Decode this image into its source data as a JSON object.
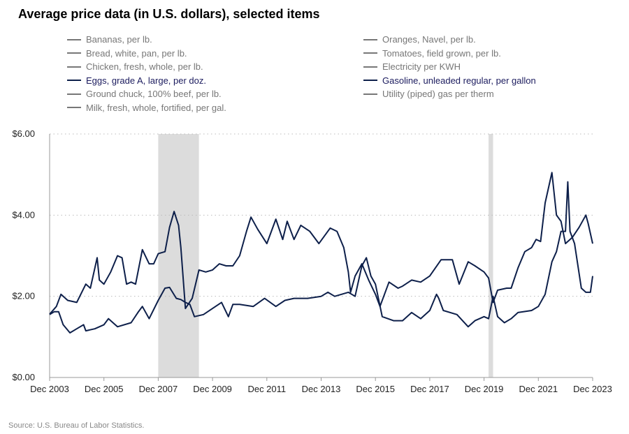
{
  "chart_data": {
    "type": "line",
    "title": "Average price data (in U.S. dollars), selected items",
    "source": "Source: U.S. Bureau of Labor Statistics.",
    "ylim": [
      0,
      6
    ],
    "yticks": [
      "$0.00",
      "$2.00",
      "$4.00",
      "$6.00"
    ],
    "ytick_values": [
      0,
      2,
      4,
      6
    ],
    "xticks": [
      "Dec 2003",
      "Dec 2005",
      "Dec 2007",
      "Dec 2009",
      "Dec 2011",
      "Dec 2013",
      "Dec 2015",
      "Dec 2017",
      "Dec 2019",
      "Dec 2021",
      "Dec 2023"
    ],
    "xlim": [
      "2003-12",
      "2023-12"
    ],
    "grid": "horizontal dotted",
    "line_color": "#0d1f4a",
    "recessions": [
      [
        "2007-12",
        "2009-06"
      ],
      [
        "2020-02",
        "2020-04"
      ]
    ],
    "recession_color": "#dcdcdc",
    "legend": [
      {
        "label": "Bananas, per lb.",
        "selected": false
      },
      {
        "label": "Bread, white, pan, per lb.",
        "selected": false
      },
      {
        "label": "Chicken, fresh, whole, per lb.",
        "selected": false
      },
      {
        "label": "Eggs, grade A, large, per doz.",
        "selected": true
      },
      {
        "label": "Ground chuck, 100% beef, per lb.",
        "selected": false
      },
      {
        "label": "Milk, fresh, whole, fortified, per gal.",
        "selected": false
      },
      {
        "label": "Oranges, Navel, per lb.",
        "selected": false
      },
      {
        "label": "Tomatoes, field grown, per lb.",
        "selected": false
      },
      {
        "label": "Electricity per KWH",
        "selected": false
      },
      {
        "label": "Gasoline, unleaded regular, per gallon",
        "selected": true
      },
      {
        "label": "Utility (piped) gas per therm",
        "selected": false
      }
    ],
    "series": [
      {
        "name": "Gasoline, unleaded regular, per gallon",
        "x": [
          "2003-12",
          "2004-03",
          "2004-05",
          "2004-08",
          "2004-12",
          "2005-04",
          "2005-06",
          "2005-09",
          "2005-10",
          "2005-12",
          "2006-03",
          "2006-06",
          "2006-08",
          "2006-10",
          "2006-12",
          "2007-02",
          "2007-05",
          "2007-08",
          "2007-10",
          "2007-12",
          "2008-03",
          "2008-05",
          "2008-07",
          "2008-09",
          "2008-10",
          "2008-12",
          "2009-03",
          "2009-06",
          "2009-09",
          "2009-12",
          "2010-03",
          "2010-06",
          "2010-09",
          "2010-12",
          "2011-03",
          "2011-05",
          "2011-08",
          "2011-12",
          "2012-04",
          "2012-07",
          "2012-09",
          "2012-12",
          "2013-03",
          "2013-07",
          "2013-11",
          "2014-04",
          "2014-07",
          "2014-10",
          "2014-12",
          "2015-01",
          "2015-03",
          "2015-06",
          "2015-09",
          "2015-12",
          "2016-02",
          "2016-06",
          "2016-10",
          "2016-12",
          "2017-04",
          "2017-08",
          "2017-12",
          "2018-05",
          "2018-10",
          "2019-01",
          "2019-05",
          "2019-08",
          "2019-12",
          "2020-02",
          "2020-04",
          "2020-06",
          "2020-10",
          "2020-12",
          "2021-03",
          "2021-06",
          "2021-09",
          "2021-11",
          "2022-01",
          "2022-03",
          "2022-06",
          "2022-08",
          "2022-10",
          "2022-12",
          "2023-03",
          "2023-06",
          "2023-09",
          "2023-10",
          "2023-12"
        ],
        "y": [
          1.56,
          1.75,
          2.05,
          1.9,
          1.85,
          2.3,
          2.2,
          2.95,
          2.4,
          2.3,
          2.6,
          3.0,
          2.95,
          2.3,
          2.35,
          2.3,
          3.15,
          2.8,
          2.8,
          3.05,
          3.1,
          3.7,
          4.09,
          3.75,
          3.2,
          1.7,
          1.95,
          2.65,
          2.6,
          2.65,
          2.8,
          2.75,
          2.75,
          3.0,
          3.6,
          3.95,
          3.65,
          3.3,
          3.9,
          3.4,
          3.85,
          3.4,
          3.75,
          3.6,
          3.3,
          3.68,
          3.6,
          3.2,
          2.6,
          2.1,
          2.5,
          2.8,
          2.4,
          2.05,
          1.75,
          2.35,
          2.2,
          2.25,
          2.4,
          2.35,
          2.5,
          2.9,
          2.9,
          2.3,
          2.85,
          2.75,
          2.6,
          2.45,
          1.85,
          2.15,
          2.2,
          2.2,
          2.7,
          3.1,
          3.2,
          3.4,
          3.35,
          4.3,
          5.05,
          4.0,
          3.85,
          3.3,
          3.45,
          3.7,
          4.0,
          3.8,
          3.3
        ]
      },
      {
        "name": "Eggs, grade A, large, per doz.",
        "x": [
          "2003-12",
          "2004-02",
          "2004-04",
          "2004-06",
          "2004-09",
          "2004-12",
          "2005-03",
          "2005-04",
          "2005-08",
          "2005-12",
          "2006-02",
          "2006-06",
          "2006-12",
          "2007-03",
          "2007-05",
          "2007-08",
          "2007-12",
          "2008-03",
          "2008-05",
          "2008-08",
          "2008-10",
          "2008-12",
          "2009-02",
          "2009-04",
          "2009-08",
          "2009-12",
          "2010-04",
          "2010-07",
          "2010-09",
          "2010-12",
          "2011-06",
          "2011-11",
          "2012-04",
          "2012-08",
          "2012-12",
          "2013-06",
          "2013-12",
          "2014-03",
          "2014-06",
          "2014-12",
          "2015-03",
          "2015-05",
          "2015-06",
          "2015-08",
          "2015-10",
          "2015-12",
          "2016-03",
          "2016-08",
          "2016-12",
          "2017-04",
          "2017-08",
          "2017-12",
          "2018-03",
          "2018-04",
          "2018-06",
          "2018-12",
          "2019-05",
          "2019-08",
          "2019-12",
          "2020-02",
          "2020-04",
          "2020-06",
          "2020-09",
          "2020-12",
          "2021-03",
          "2021-09",
          "2021-12",
          "2022-03",
          "2022-06",
          "2022-08",
          "2022-10",
          "2022-12",
          "2023-01",
          "2023-02",
          "2023-04",
          "2023-07",
          "2023-09",
          "2023-11",
          "2023-12"
        ],
        "y": [
          1.55,
          1.62,
          1.62,
          1.3,
          1.1,
          1.2,
          1.3,
          1.15,
          1.2,
          1.3,
          1.45,
          1.25,
          1.35,
          1.6,
          1.75,
          1.45,
          1.9,
          2.2,
          2.22,
          1.95,
          1.92,
          1.85,
          1.8,
          1.5,
          1.55,
          1.7,
          1.85,
          1.5,
          1.8,
          1.8,
          1.75,
          1.95,
          1.75,
          1.9,
          1.95,
          1.95,
          2.0,
          2.1,
          2.0,
          2.1,
          2.0,
          2.5,
          2.75,
          2.95,
          2.5,
          2.3,
          1.5,
          1.4,
          1.4,
          1.6,
          1.45,
          1.65,
          2.05,
          1.95,
          1.65,
          1.55,
          1.25,
          1.4,
          1.5,
          1.45,
          2.0,
          1.5,
          1.35,
          1.45,
          1.6,
          1.65,
          1.75,
          2.05,
          2.85,
          3.1,
          3.6,
          3.6,
          4.82,
          3.6,
          3.3,
          2.2,
          2.1,
          2.1,
          2.5
        ]
      }
    ]
  }
}
